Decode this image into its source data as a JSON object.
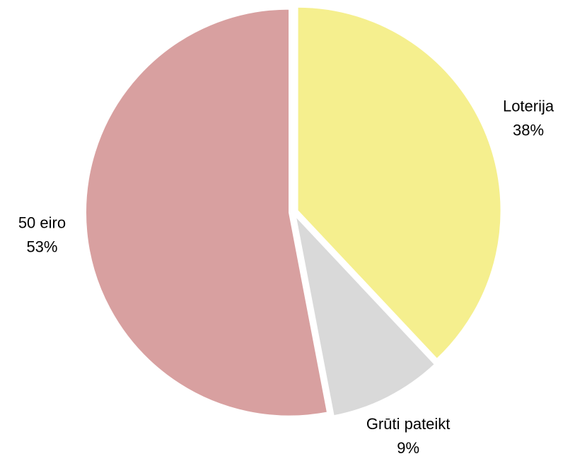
{
  "chart_data": {
    "type": "pie",
    "categories": [
      "Loterija",
      "Grūti pateikt",
      "50 eiro"
    ],
    "values": [
      38,
      9,
      53
    ],
    "value_labels": [
      "38%",
      "9%",
      "53%"
    ],
    "colors": [
      "#f5ef8e",
      "#d9d9d9",
      "#d8a0a0"
    ]
  }
}
